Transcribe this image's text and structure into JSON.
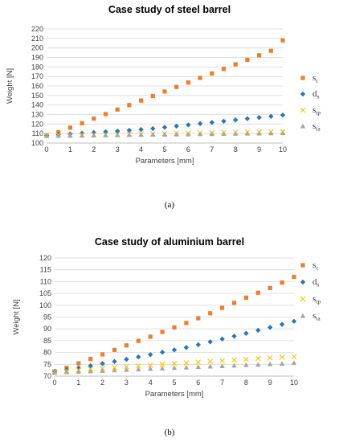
{
  "chart_data": [
    {
      "type": "scatter",
      "title": "Case study of steel barrel",
      "xlabel": "Parameters [mm]",
      "ylabel": "Weight [N]",
      "xlim": [
        0,
        10
      ],
      "ylim": [
        100,
        220
      ],
      "xticks": [
        "0",
        "1",
        "2",
        "3",
        "4",
        "5",
        "6",
        "7",
        "8",
        "9",
        "10"
      ],
      "yticks": [
        "100",
        "110",
        "120",
        "130",
        "140",
        "150",
        "160",
        "170",
        "180",
        "190",
        "200",
        "210",
        "220"
      ],
      "grid": "horizontal",
      "legend_position": "right",
      "caption": "(a)",
      "x": [
        0,
        0.5,
        1,
        1.5,
        2,
        2.5,
        3,
        3.5,
        4,
        4.5,
        5,
        5.5,
        6,
        6.5,
        7,
        7.5,
        8,
        8.5,
        9,
        9.5,
        10
      ],
      "series": [
        {
          "name": "s",
          "sub": "c",
          "marker": "square",
          "color": "#ED7D31",
          "values": [
            108,
            111.4,
            116.2,
            120.9,
            125.7,
            130.4,
            135.2,
            139.9,
            144.7,
            149.5,
            154.2,
            159,
            163.7,
            168.5,
            173.2,
            178,
            182.8,
            187.5,
            192.3,
            197,
            208
          ]
        },
        {
          "name": "d",
          "sub": "s",
          "marker": "diamond",
          "color": "#2E75B6",
          "values": [
            108,
            108.8,
            109.5,
            110.3,
            111.1,
            111.9,
            112.6,
            113.4,
            114.3,
            115.2,
            116.5,
            117.8,
            119.1,
            120.4,
            121.7,
            123,
            124.3,
            125.6,
            126.9,
            128.1,
            129.4
          ]
        },
        {
          "name": "s",
          "sub": "tp",
          "marker": "x",
          "color": "#FFC000",
          "values": [
            108,
            108.2,
            108.4,
            108.6,
            108.8,
            109,
            109.2,
            109.4,
            109.6,
            109.8,
            110,
            110.2,
            110.4,
            110.6,
            110.8,
            111,
            111.2,
            111.4,
            111.6,
            111.8,
            112
          ]
        },
        {
          "name": "s",
          "sub": "ta",
          "marker": "triangle",
          "color": "#A5A5A5",
          "values": [
            107.5,
            107.7,
            107.8,
            108,
            108.1,
            108.3,
            108.4,
            108.6,
            108.7,
            108.9,
            109,
            109.2,
            109.3,
            109.5,
            109.6,
            109.8,
            109.9,
            110.1,
            110.2,
            110.4,
            110.5
          ]
        }
      ]
    },
    {
      "type": "scatter",
      "title": "Case study of aluminium barrel",
      "xlabel": "Parameters [mm]",
      "ylabel": "Weight [N]",
      "xlim": [
        0,
        10
      ],
      "ylim": [
        70,
        120
      ],
      "xticks": [
        "0",
        "1",
        "2",
        "3",
        "4",
        "5",
        "6",
        "7",
        "8",
        "9",
        "10"
      ],
      "yticks": [
        "70",
        "75",
        "80",
        "85",
        "90",
        "95",
        "100",
        "105",
        "110",
        "115",
        "120"
      ],
      "grid": "horizontal",
      "legend_position": "right",
      "caption": "(b)",
      "x": [
        0,
        0.5,
        1,
        1.5,
        2,
        2.5,
        3,
        3.5,
        4,
        4.5,
        5,
        5.5,
        6,
        6.5,
        7,
        7.5,
        8,
        8.5,
        9,
        9.5,
        10
      ],
      "series": [
        {
          "name": "s",
          "sub": "c",
          "marker": "square",
          "color": "#ED7D31",
          "values": [
            72,
            73.5,
            75.4,
            77.3,
            79.2,
            81.1,
            83,
            84.9,
            86.7,
            88.7,
            90.6,
            92.5,
            94.5,
            96.6,
            98.9,
            101,
            103.2,
            105.3,
            107.3,
            109.6,
            112
          ]
        },
        {
          "name": "d",
          "sub": "s",
          "marker": "diamond",
          "color": "#2E75B6",
          "values": [
            72,
            72.8,
            73.4,
            74.4,
            75.3,
            76.2,
            77.1,
            78.1,
            79.1,
            80.1,
            81.1,
            82.1,
            83.3,
            84.5,
            85.7,
            86.9,
            88.1,
            89.4,
            90.6,
            91.9,
            93.2
          ]
        },
        {
          "name": "s",
          "sub": "tp",
          "marker": "x",
          "color": "#FFC000",
          "values": [
            72,
            72.3,
            72.6,
            73,
            73.3,
            73.6,
            74,
            74.3,
            74.6,
            75,
            75.3,
            75.6,
            75.9,
            76.2,
            76.5,
            76.8,
            77.1,
            77.4,
            77.7,
            78,
            78.2
          ]
        },
        {
          "name": "s",
          "sub": "ta",
          "marker": "triangle",
          "color": "#A5A5A5",
          "values": [
            71.5,
            71.7,
            71.9,
            72.1,
            72.3,
            72.5,
            72.7,
            72.9,
            73.1,
            73.3,
            73.5,
            73.7,
            73.9,
            74.1,
            74.3,
            74.5,
            74.7,
            74.9,
            75.1,
            75.3,
            75.6
          ]
        }
      ]
    }
  ]
}
